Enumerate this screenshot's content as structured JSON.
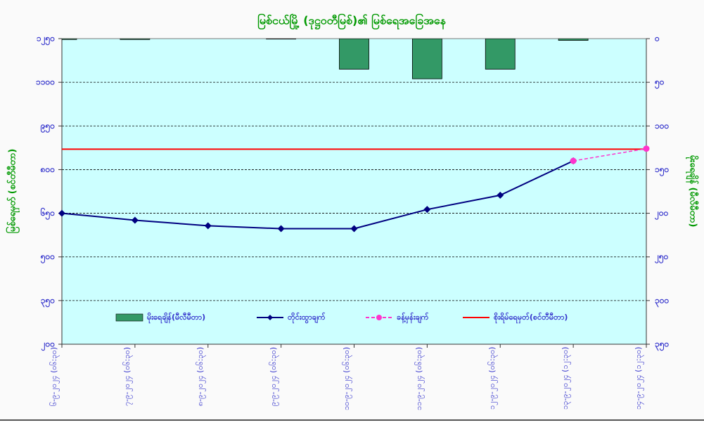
{
  "chart_data": {
    "type": "combo",
    "title": "မြစ်ငယ်မြို့ (ဒုဋ္ဌဝတီမြစ်)၏ မြစ်ရေအခြေအနေ",
    "y_label": "မြစ်ရေမှတ် (စင်တီမီတာ)",
    "y2_label": "မိုးရေချိန် (မီလီမီတာ)",
    "categories": [
      "၆-၉-၂၀၂၄ (၀၆:၃၀)",
      "၇-၉-၂၀၂၄ (၀၆:၃၀)",
      "၈-၉-၂၀၂၄ (၀၆:၃၀)",
      "၉-၉-၂၀၂၄ (၀၆:၃၀)",
      "၁၀-၉-၂၀၂၄ (၀၆:၃၀)",
      "၁၁-၉-၂၀၂၄ (၀၆:၃၀)",
      "၁၂-၉-၂၀၂၄ (၀၆:၃၀)",
      "၁၃-၉-၂၀၂၄ (၁၂:၃၀)",
      "၁၄-၉-၂၀၂၄ (၁၂:၃၀)"
    ],
    "ylim": [
      200,
      1250
    ],
    "yticks": [
      {
        "value": 200,
        "label": "၂၀၀"
      },
      {
        "value": 350,
        "label": "၃၅၀"
      },
      {
        "value": 500,
        "label": "၅၀၀"
      },
      {
        "value": 650,
        "label": "၆၅၀"
      },
      {
        "value": 800,
        "label": "၈၀၀"
      },
      {
        "value": 950,
        "label": "၉၅၀"
      },
      {
        "value": 1100,
        "label": "၁၁၀၀"
      },
      {
        "value": 1250,
        "label": "၁၂၅၀"
      }
    ],
    "y2lim": [
      350,
      0
    ],
    "y2ticks": [
      {
        "value": 0,
        "label": "၀"
      },
      {
        "value": 50,
        "label": "၅၀"
      },
      {
        "value": 100,
        "label": "၁၀၀"
      },
      {
        "value": 150,
        "label": "၁၅၀"
      },
      {
        "value": 200,
        "label": "၂၀၀"
      },
      {
        "value": 250,
        "label": "၂၅၀"
      },
      {
        "value": 300,
        "label": "၃၀၀"
      },
      {
        "value": 350,
        "label": "၃၅၀"
      }
    ],
    "grid": true,
    "series": [
      {
        "name": "မိုးရေချိန်(မီလီမီတာ)",
        "type": "bar",
        "axis": "y2",
        "color": "#339966",
        "values": [
          1,
          1,
          0,
          0.5,
          35,
          46,
          35,
          2,
          null
        ]
      },
      {
        "name": "တိုင်းထွာချက်",
        "type": "line",
        "color": "#000080",
        "dash": false,
        "values": [
          650,
          626,
          607,
          597,
          597,
          663,
          712,
          830,
          null
        ]
      },
      {
        "name": "ခန့်မှန်းချက်",
        "type": "line",
        "color": "#ff33cc",
        "dash": true,
        "values": [
          null,
          null,
          null,
          null,
          null,
          null,
          null,
          830,
          872
        ]
      },
      {
        "name": "စိုးရိမ်ရေမှတ်(စင်တီမီတာ)",
        "type": "hline",
        "color": "#ff0000",
        "value": 870
      }
    ]
  }
}
